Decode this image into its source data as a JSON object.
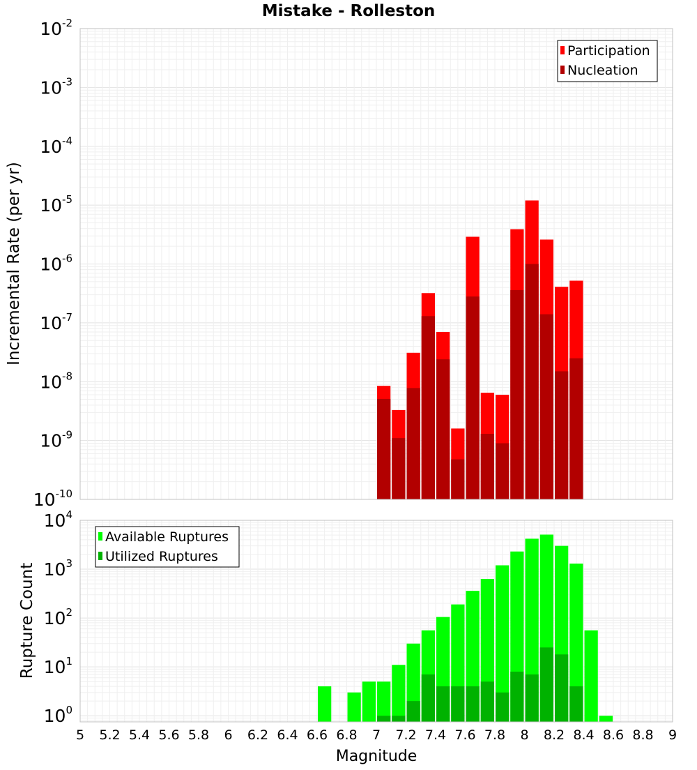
{
  "chart_data": {
    "type": "bar",
    "title": "Mistake - Rolleston",
    "xlabel": "Magnitude",
    "xlim": [
      5,
      9
    ],
    "xticks": [
      "5",
      "5.2",
      "5.4",
      "5.6",
      "5.8",
      "6",
      "6.2",
      "6.4",
      "6.6",
      "6.8",
      "7",
      "7.2",
      "7.4",
      "7.6",
      "7.8",
      "8",
      "8.2",
      "8.4",
      "8.6",
      "8.8",
      "9"
    ],
    "grid": true,
    "panels": [
      {
        "ylabel": "Incremental Rate (per yr)",
        "yscale": "log",
        "ylim": [
          1e-10,
          0.01
        ],
        "yticks": [
          {
            "base": "10",
            "exp": "-2"
          },
          {
            "base": "10",
            "exp": "-3"
          },
          {
            "base": "10",
            "exp": "-4"
          },
          {
            "base": "10",
            "exp": "-5"
          },
          {
            "base": "10",
            "exp": "-6"
          },
          {
            "base": "10",
            "exp": "-7"
          },
          {
            "base": "10",
            "exp": "-8"
          },
          {
            "base": "10",
            "exp": "-9"
          },
          {
            "base": "10",
            "exp": "-10"
          }
        ],
        "legend_position": "top-right",
        "x": [
          7.05,
          7.15,
          7.25,
          7.35,
          7.45,
          7.55,
          7.65,
          7.75,
          7.85,
          7.95,
          8.05,
          8.15,
          8.25,
          8.35
        ],
        "series": [
          {
            "name": "Participation",
            "color": "#ff0000",
            "values": [
              8.5e-09,
              3.3e-09,
              3.1e-08,
              3.2e-07,
              7e-08,
              1.6e-09,
              2.9e-06,
              6.5e-09,
              6e-09,
              3.9e-06,
              1.2e-05,
              2.6e-06,
              4.1e-07,
              5.2e-07
            ]
          },
          {
            "name": "Nucleation",
            "color": "#b20000",
            "values": [
              5.1e-09,
              1.1e-09,
              7.8e-09,
              1.3e-07,
              2.4e-08,
              4.8e-10,
              2.8e-07,
              1.3e-09,
              9e-10,
              3.6e-07,
              1e-06,
              1.4e-07,
              1.5e-08,
              2.5e-08
            ]
          }
        ]
      },
      {
        "ylabel": "Rupture Count",
        "yscale": "log",
        "ylim": [
          0.75,
          10000
        ],
        "yticks": [
          {
            "base": "10",
            "exp": "4"
          },
          {
            "base": "10",
            "exp": "3"
          },
          {
            "base": "10",
            "exp": "2"
          },
          {
            "base": "10",
            "exp": "1"
          },
          {
            "base": "10",
            "exp": "0"
          }
        ],
        "legend_position": "top-left",
        "x": [
          6.65,
          6.75,
          6.85,
          6.95,
          7.05,
          7.15,
          7.25,
          7.35,
          7.45,
          7.55,
          7.65,
          7.75,
          7.85,
          7.95,
          8.05,
          8.15,
          8.25,
          8.35,
          8.45,
          8.55
        ],
        "series": [
          {
            "name": "Available Ruptures",
            "color": "#00ff00",
            "values": [
              4,
              null,
              3,
              5,
              5,
              11,
              30,
              56,
              105,
              190,
              360,
              630,
              1200,
              2300,
              4200,
              5100,
              3000,
              1300,
              56,
              1
            ]
          },
          {
            "name": "Utilized Ruptures",
            "color": "#00b200",
            "values": [
              null,
              null,
              null,
              null,
              1,
              1,
              2,
              7,
              4,
              4,
              4,
              5,
              3,
              8,
              7,
              25,
              18,
              4,
              null,
              null
            ]
          }
        ]
      }
    ]
  }
}
